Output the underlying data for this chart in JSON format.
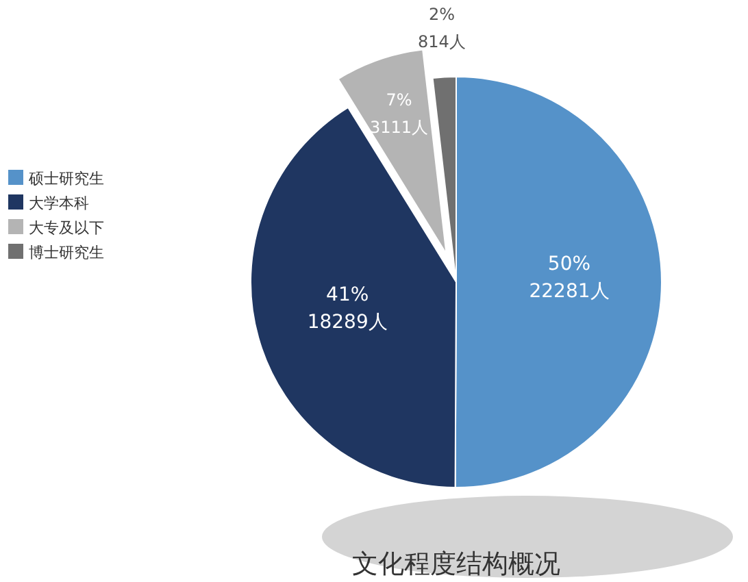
{
  "chart_data": {
    "type": "pie",
    "title": "文化程度结构概况",
    "categories": [
      "硕士研究生",
      "大学本科",
      "大专及以下",
      "博士研究生"
    ],
    "values": [
      22281,
      18289,
      3111,
      814
    ],
    "value_labels": [
      "50% 22281人",
      "41% 18289人",
      "7% 3111人",
      "2% 814人"
    ],
    "colors": [
      "#5592c9",
      "#1f3661",
      "#b4b4b4",
      "#707070"
    ],
    "legend": "left"
  }
}
